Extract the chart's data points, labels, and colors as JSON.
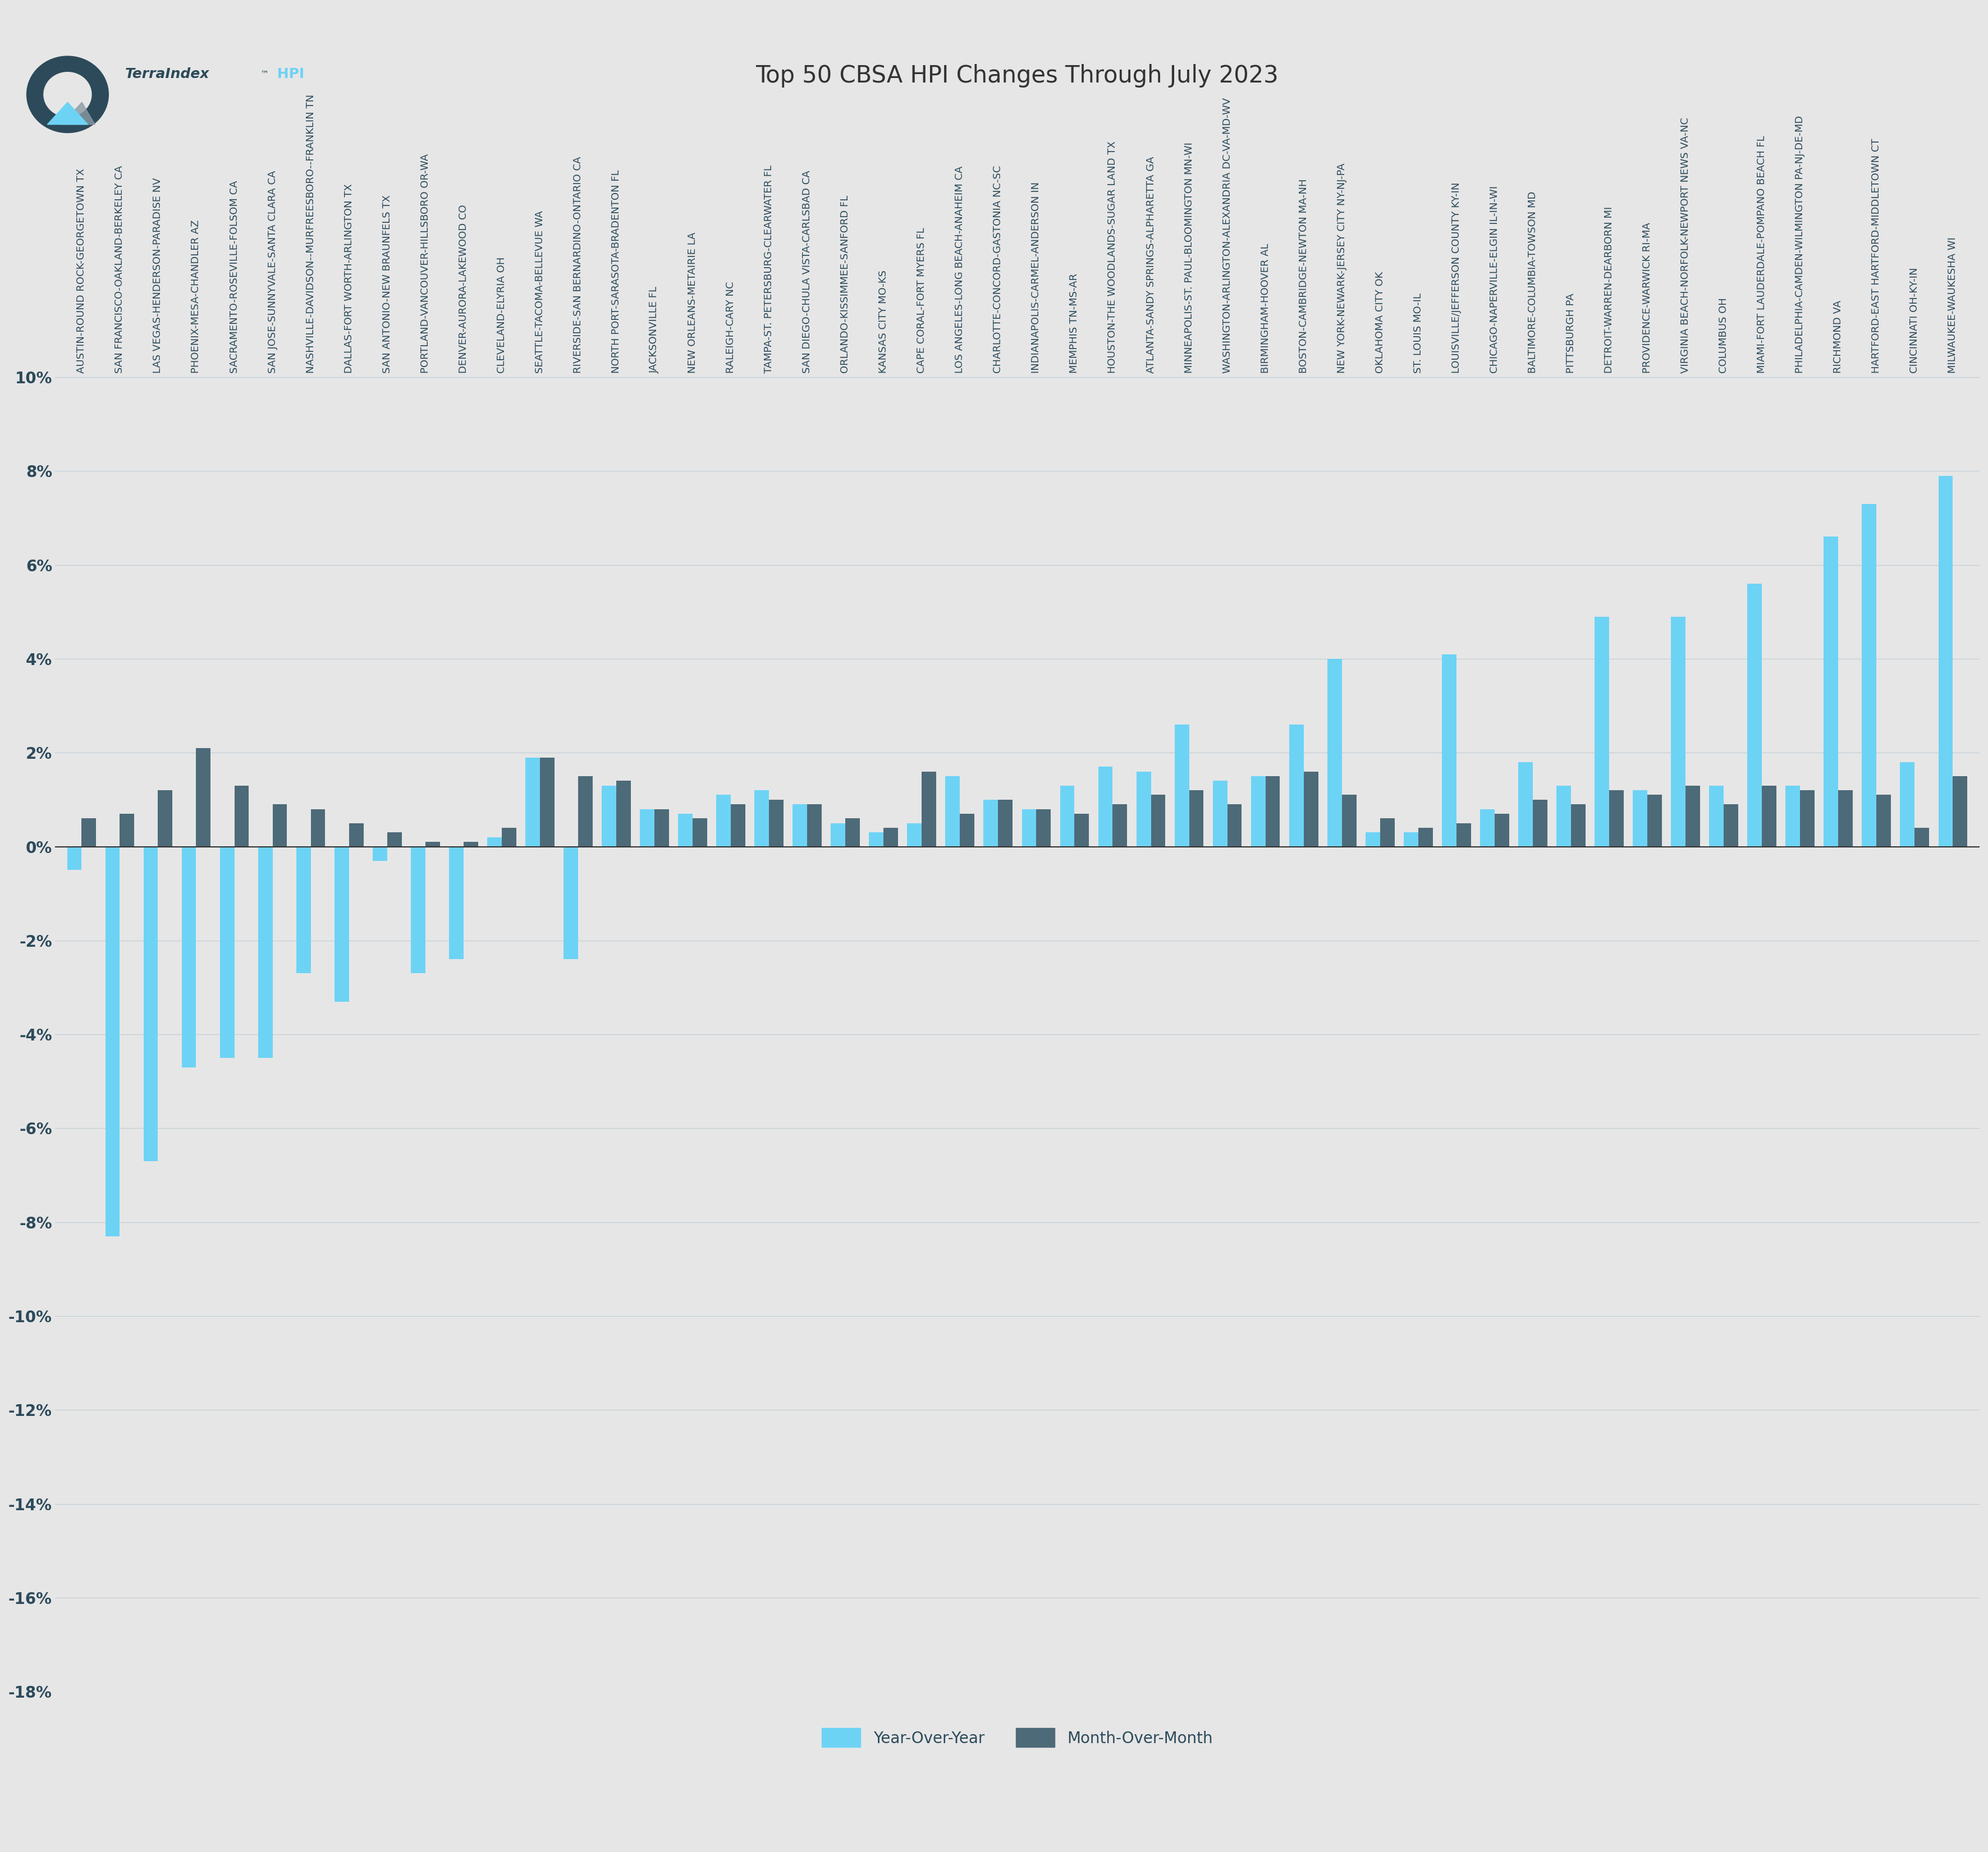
{
  "title": "Top 50 CBSA HPI Changes Through July 2023",
  "categories": [
    "AUSTIN-ROUND ROCK-GEORGETOWN TX",
    "SAN FRANCISCO-OAKLAND-BERKELEY CA",
    "LAS VEGAS-HENDERSON-PARADISE NV",
    "PHOENIX-MESA-CHANDLER AZ",
    "SACRAMENTO-ROSEVILLE-FOLSOM CA",
    "SAN JOSE-SUNNYVALE-SANTA CLARA CA",
    "NASHVILLE-DAVIDSON--MURFREESBORO--FRANKLIN TN",
    "DALLAS-FORT WORTH-ARLINGTON TX",
    "SAN ANTONIO-NEW BRAUNFELS TX",
    "PORTLAND-VANCOUVER-HILLSBORO OR-WA",
    "DENVER-AURORA-LAKEWOOD CO",
    "CLEVELAND-ELYRIA OH",
    "SEATTLE-TACOMA-BELLEVUE WA",
    "RIVERSIDE-SAN BERNARDINO-ONTARIO CA",
    "NORTH PORT-SARASOTA-BRADENTON FL",
    "JACKSONVILLE FL",
    "NEW ORLEANS-METAIRIE LA",
    "RALEIGH-CARY NC",
    "TAMPA-ST. PETERSBURG-CLEARWATER FL",
    "SAN DIEGO-CHULA VISTA-CARLSBAD CA",
    "ORLANDO-KISSIMMEE-SANFORD FL",
    "KANSAS CITY MO-KS",
    "CAPE CORAL-FORT MYERS FL",
    "LOS ANGELES-LONG BEACH-ANAHEIM CA",
    "CHARLOTTE-CONCORD-GASTONIA NC-SC",
    "INDIANAPOLIS-CARMEL-ANDERSON IN",
    "MEMPHIS TN-MS-AR",
    "HOUSTON-THE WOODLANDS-SUGAR LAND TX",
    "ATLANTA-SANDY SPRINGS-ALPHARETTA GA",
    "MINNEAPOLIS-ST. PAUL-BLOOMINGTON MN-WI",
    "WASHINGTON-ARLINGTON-ALEXANDRIA DC-VA-MD-WV",
    "BIRMINGHAM-HOOVER AL",
    "BOSTON-CAMBRIDGE-NEWTON MA-NH",
    "NEW YORK-NEWARK-JERSEY CITY NY-NJ-PA",
    "OKLAHOMA CITY OK",
    "ST. LOUIS MO-IL",
    "LOUISVILLE/JEFFERSON COUNTY KY-IN",
    "CHICAGO-NAPERVILLE-ELGIN IL-IN-WI",
    "BALTIMORE-COLUMBIA-TOWSON MD",
    "PITTSBURGH PA",
    "DETROIT-WARREN-DEARBORN MI",
    "PROVIDENCE-WARWICK RI-MA",
    "VIRGINIA BEACH-NORFOLK-NEWPORT NEWS VA-NC",
    "COLUMBUS OH",
    "MIAMI-FORT LAUDERDALE-POMPANO BEACH FL",
    "PHILADELPHIA-CAMDEN-WILMINGTON PA-NJ-DE-MD",
    "RICHMOND VA",
    "HARTFORD-EAST HARTFORD-MIDDLETOWN CT",
    "CINCINNATI OH-KY-IN",
    "MILWAUKEE-WAUKESHA WI"
  ],
  "yoy": [
    -0.5,
    -8.3,
    -6.7,
    -4.7,
    -4.5,
    -4.5,
    -2.7,
    -3.3,
    -0.3,
    -2.7,
    -2.4,
    0.2,
    1.9,
    -2.4,
    1.3,
    0.8,
    0.7,
    1.1,
    1.2,
    0.9,
    0.5,
    0.3,
    0.5,
    1.5,
    1.0,
    0.8,
    1.3,
    1.7,
    1.6,
    2.6,
    1.4,
    1.5,
    2.6,
    4.0,
    0.3,
    0.3,
    4.1,
    0.8,
    1.8,
    1.3,
    4.9,
    1.2,
    4.9,
    1.3,
    5.6,
    1.3,
    6.6,
    7.3,
    1.8,
    7.9
  ],
  "mom": [
    0.6,
    0.7,
    1.2,
    2.1,
    1.3,
    0.9,
    0.8,
    0.5,
    0.3,
    0.1,
    0.1,
    0.4,
    1.9,
    1.5,
    1.4,
    0.8,
    0.6,
    0.9,
    1.0,
    0.9,
    0.6,
    0.4,
    1.6,
    0.7,
    1.0,
    0.8,
    0.7,
    0.9,
    1.1,
    1.2,
    0.9,
    1.5,
    1.6,
    1.1,
    0.6,
    0.4,
    0.5,
    0.7,
    1.0,
    0.9,
    1.2,
    1.1,
    1.3,
    0.9,
    1.3,
    1.2,
    1.2,
    1.1,
    0.4,
    1.5
  ],
  "yoy_color": "#6DD3F5",
  "mom_color": "#4d6a78",
  "background_color": "#e6e6e6",
  "title_color": "#333333",
  "axis_label_color": "#2c4a5a",
  "ylim": [
    -18,
    10
  ],
  "ytick_step": 2,
  "bar_width": 0.38,
  "logo_color_dark": "#2c4a5a",
  "logo_color_light": "#6DD3F5",
  "logo_text": "TerraIndex",
  "logo_hpi": "HPI"
}
